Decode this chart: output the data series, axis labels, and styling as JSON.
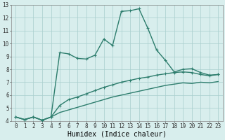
{
  "title": "",
  "xlabel": "Humidex (Indice chaleur)",
  "x": [
    0,
    1,
    2,
    3,
    4,
    5,
    6,
    7,
    8,
    9,
    10,
    11,
    12,
    13,
    14,
    15,
    16,
    17,
    18,
    19,
    20,
    21,
    22,
    23
  ],
  "line1_y": [
    4.3,
    4.1,
    4.3,
    4.05,
    4.3,
    9.3,
    9.2,
    8.85,
    8.8,
    9.1,
    10.35,
    9.85,
    12.5,
    12.55,
    12.7,
    11.2,
    9.5,
    8.7,
    7.8,
    8.0,
    8.05,
    7.75,
    7.55,
    7.6
  ],
  "line2_y": [
    4.3,
    4.1,
    4.3,
    4.05,
    4.3,
    5.2,
    5.65,
    5.85,
    6.1,
    6.35,
    6.6,
    6.8,
    7.0,
    7.15,
    7.3,
    7.4,
    7.55,
    7.65,
    7.75,
    7.8,
    7.75,
    7.6,
    7.5,
    7.6
  ],
  "line3_y": [
    4.3,
    4.1,
    4.3,
    4.05,
    4.3,
    4.65,
    4.85,
    5.05,
    5.25,
    5.45,
    5.65,
    5.85,
    6.0,
    6.15,
    6.3,
    6.45,
    6.6,
    6.75,
    6.85,
    6.95,
    6.9,
    7.0,
    6.95,
    7.05
  ],
  "line_color": "#2d7d6d",
  "bg_color": "#d8eeed",
  "grid_color": "#a8cecc",
  "ylim": [
    4,
    13
  ],
  "xlim": [
    -0.5,
    23.5
  ],
  "yticks": [
    4,
    5,
    6,
    7,
    8,
    9,
    10,
    11,
    12,
    13
  ],
  "xticks": [
    0,
    1,
    2,
    3,
    4,
    5,
    6,
    7,
    8,
    9,
    10,
    11,
    12,
    13,
    14,
    15,
    16,
    17,
    18,
    19,
    20,
    21,
    22,
    23
  ],
  "tick_fontsize": 5.5,
  "xlabel_fontsize": 7.0,
  "linewidth": 1.0,
  "markersize": 3.5
}
